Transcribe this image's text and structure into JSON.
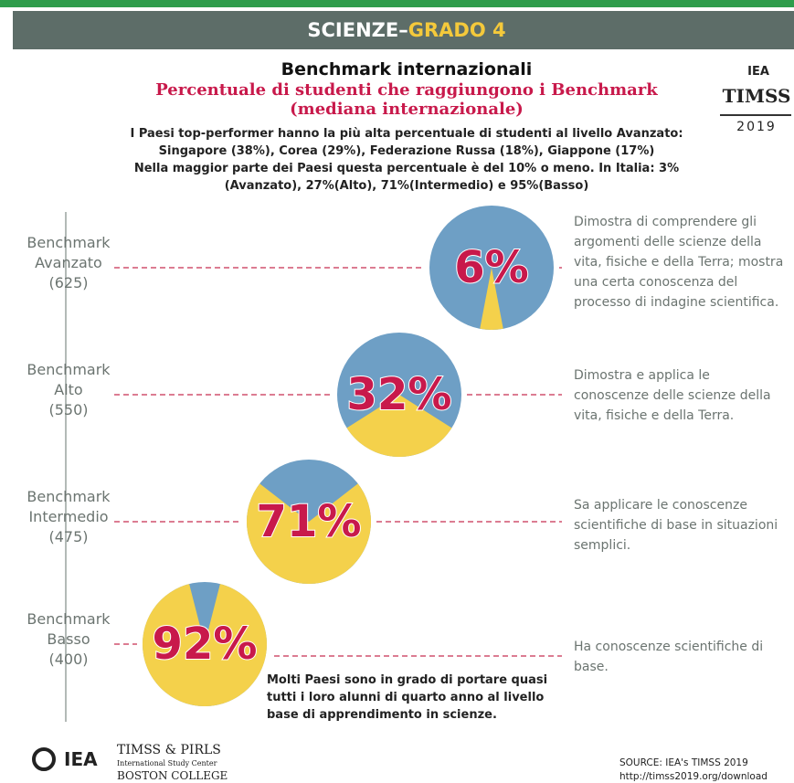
{
  "header": {
    "subject": "SCIENZE–",
    "grade": "GRADO 4"
  },
  "title": "Benchmark internazionali",
  "subtitle": [
    "Percentuale di studenti che raggiungono i Benchmark",
    "(mediana internazionale)"
  ],
  "logo": {
    "org": "IEA",
    "study": "TIMSS",
    "year": "2019"
  },
  "intro": [
    "I Paesi top-performer hanno la più alta percentuale di studenti al livello Avanzato:",
    "Singapore (38%), Corea (29%), Federazione Russa (18%), Giappone (17%)",
    "Nella maggior parte dei Paesi questa percentuale è del 10% o meno. In Italia: 3%",
    "(Avanzato), 27%(Alto), 71%(Intermedio) e 95%(Basso)"
  ],
  "chart_data": [
    {
      "type": "pie",
      "level": [
        "Benchmark",
        "Avanzato",
        "(625)"
      ],
      "values": [
        6
      ],
      "value_labels": [
        "6%"
      ],
      "colors": [
        "#f4d14b"
      ],
      "remainder_color": "#6e9fc5",
      "description": "Dimostra di comprendere gli argomenti delle scienze della vita, fisiche e della Terra; mostra una certa conoscenza del processo di indagine scientifica."
    },
    {
      "type": "pie",
      "level": [
        "Benchmark",
        "Alto",
        "(550)"
      ],
      "values": [
        32
      ],
      "value_labels": [
        "32%"
      ],
      "colors": [
        "#f4d14b"
      ],
      "remainder_color": "#6e9fc5",
      "description": "Dimostra e applica le conoscenze delle scienze della vita, fisiche e della Terra."
    },
    {
      "type": "pie",
      "level": [
        "Benchmark",
        "Intermedio",
        "(475)"
      ],
      "values": [
        71
      ],
      "value_labels": [
        "71%"
      ],
      "colors": [
        "#f4d14b"
      ],
      "remainder_color": "#6e9fc5",
      "description": "Sa applicare le conoscenze scientifiche di base in situazioni semplici."
    },
    {
      "type": "pie",
      "level": [
        "Benchmark",
        "Basso",
        "(400)"
      ],
      "values": [
        92
      ],
      "value_labels": [
        "92%"
      ],
      "colors": [
        "#f4d14b"
      ],
      "remainder_color": "#6e9fc5",
      "description": "Ha conoscenze scientifiche di base."
    }
  ],
  "note": "Molti Paesi sono in grado di portare quasi tutti i loro alunni di quarto anno al livello base di apprendimento in scienze.",
  "footer": {
    "org": "IEA",
    "center": [
      "TIMSS & PIRLS",
      "International Study Center",
      "BOSTON COLLEGE"
    ],
    "source": [
      "SOURCE: IEA's TIMSS 2019",
      "http://timss2019.org/download"
    ]
  }
}
